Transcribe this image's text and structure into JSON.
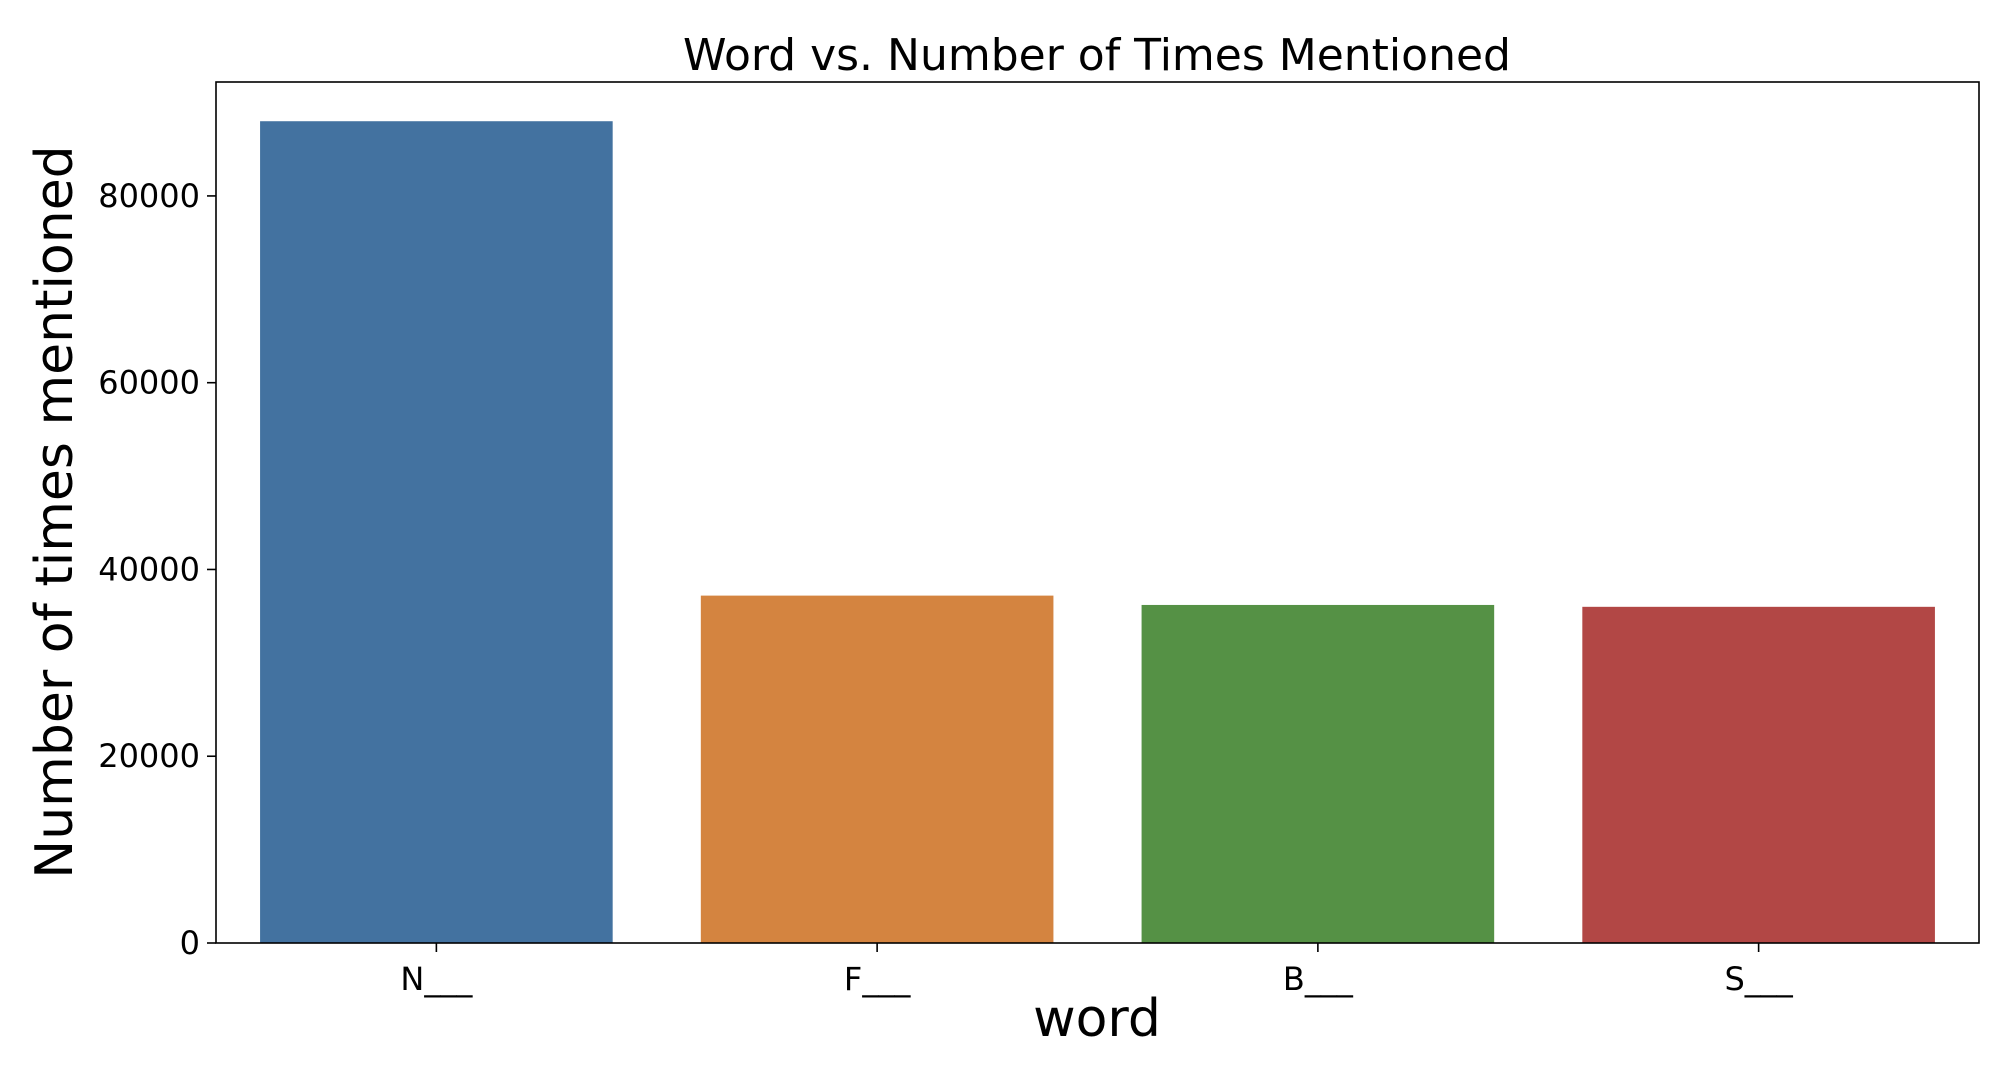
{
  "chart_data": {
    "type": "bar",
    "title": "Word vs. Number of Times Mentioned",
    "xlabel": "word",
    "ylabel": "Number of times mentioned",
    "categories": [
      "N___",
      "F___",
      "B___",
      "S___"
    ],
    "values": [
      88000,
      37200,
      36200,
      36000
    ],
    "colors": [
      "#4372a0",
      "#d48440",
      "#559145",
      "#b24745"
    ],
    "ylim": [
      0,
      92200
    ],
    "yticks": [
      0,
      20000,
      40000,
      60000,
      80000
    ],
    "ytick_labels": [
      "0",
      "20000",
      "40000",
      "60000",
      "80000"
    ],
    "grid": false,
    "legend": "none"
  }
}
